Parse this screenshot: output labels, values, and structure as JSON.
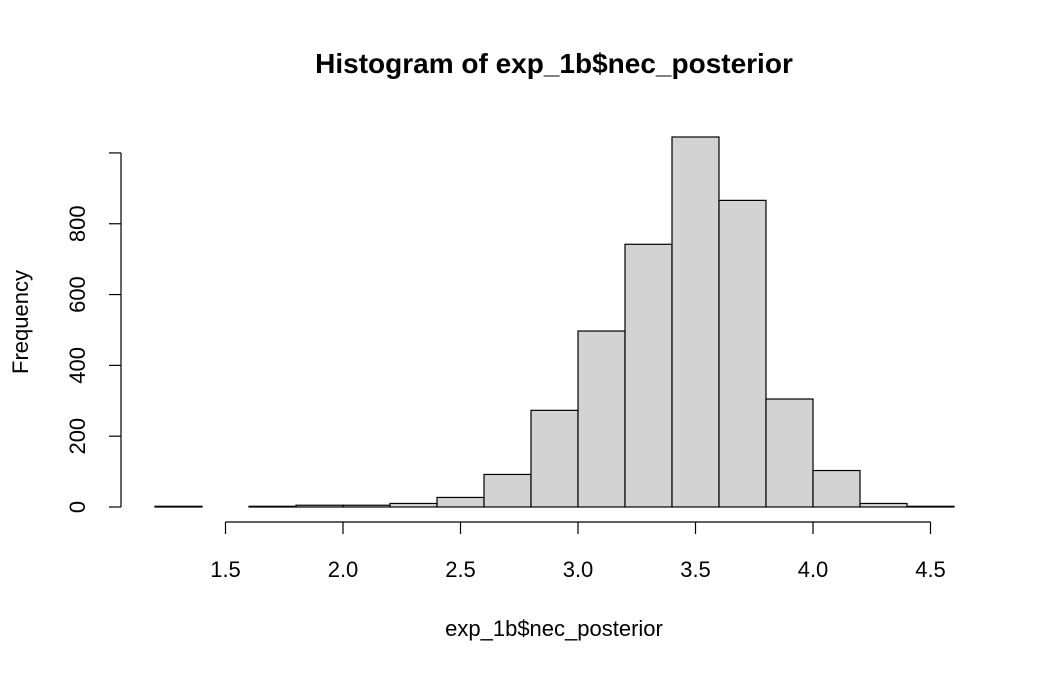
{
  "chart_data": {
    "type": "bar",
    "subtype": "histogram",
    "title": "Histogram of exp_1b$nec_posterior",
    "xlabel": "exp_1b$nec_posterior",
    "ylabel": "Frequency",
    "bin_edges": [
      1.2,
      1.4,
      1.6,
      1.8,
      2.0,
      2.2,
      2.4,
      2.6,
      2.8,
      3.0,
      3.2,
      3.4,
      3.6,
      3.8,
      4.0,
      4.2,
      4.4,
      4.6
    ],
    "values": [
      2,
      0,
      2,
      5,
      5,
      10,
      27,
      92,
      273,
      497,
      742,
      1045,
      866,
      305,
      103,
      10,
      2
    ],
    "xlim": [
      1.2,
      4.6
    ],
    "ylim": [
      0,
      1045
    ],
    "x_ticks": [
      1.5,
      2.0,
      2.5,
      3.0,
      3.5,
      4.0,
      4.5
    ],
    "x_tick_labels": [
      "1.5",
      "2.0",
      "2.5",
      "3.0",
      "3.5",
      "4.0",
      "4.5"
    ],
    "y_ticks": [
      0,
      200,
      400,
      600,
      800,
      1000
    ],
    "y_tick_labels": [
      "0",
      "200",
      "400",
      "600",
      "800",
      ""
    ],
    "grid": false,
    "legend": "none",
    "bar_color": "#d3d3d3",
    "edge_color": "#000000"
  }
}
